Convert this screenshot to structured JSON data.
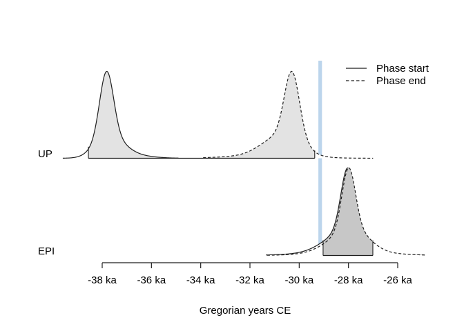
{
  "chart_data": {
    "type": "area",
    "title": "",
    "xlabel": "Gregorian years CE",
    "x_axis": {
      "unit": "ka",
      "range_ka": [
        -38,
        -26
      ],
      "ticks": [
        {
          "value": -38,
          "label": "-38 ka"
        },
        {
          "value": -36,
          "label": "-36 ka"
        },
        {
          "value": -34,
          "label": "-34 ka"
        },
        {
          "value": -32,
          "label": "-32 ka"
        },
        {
          "value": -30,
          "label": "-30 ka"
        },
        {
          "value": -28,
          "label": "-28 ka"
        },
        {
          "value": -26,
          "label": "-26 ka"
        }
      ]
    },
    "legend": {
      "position": "top-right",
      "items": [
        {
          "label": "Phase start",
          "style": "solid"
        },
        {
          "label": "Phase end",
          "style": "dashed"
        }
      ]
    },
    "event_marker": {
      "value_ka": -29.15,
      "color": "#bcd5ec"
    },
    "colors": {
      "line": "#1e1e1e",
      "fill_single": "#e3e3e3",
      "fill_overlap": "#c7c7c7",
      "background": "#ffffff"
    },
    "rows": [
      {
        "label": "UP",
        "hpd_ka": [
          -38.56,
          -29.37
        ],
        "curves": [
          {
            "name": "phase-start",
            "style": "solid",
            "fill": "#e3e3e3",
            "peak_ka": -37.8,
            "support_ka": [
              -39.6,
              -34.9
            ],
            "mix": [
              [
                -37.82,
                0.28,
                1.0
              ],
              [
                -37.5,
                0.5,
                0.2
              ],
              [
                -37.1,
                0.85,
                0.06
              ],
              [
                -38.15,
                0.42,
                0.12
              ]
            ]
          },
          {
            "name": "phase-end",
            "style": "dashed",
            "fill": "#e3e3e3",
            "peak_ka": -30.3,
            "support_ka": [
              -33.9,
              -27.0
            ],
            "mix": [
              [
                -30.3,
                0.3,
                1.0
              ],
              [
                -30.75,
                0.75,
                0.32
              ],
              [
                -31.4,
                1.5,
                0.04
              ],
              [
                -30.05,
                0.4,
                0.1
              ]
            ]
          }
        ]
      },
      {
        "label": "EPI",
        "hpd_ka": [
          -29.03,
          -27.01
        ],
        "curves": [
          {
            "name": "phase-start",
            "style": "solid",
            "fill": "#c7c7c7",
            "peak_ka": -28.0,
            "support_ka": [
              -31.35,
              -24.9
            ],
            "mix": [
              [
                -28.03,
                0.27,
                1.0
              ],
              [
                -28.17,
                0.8,
                0.33
              ],
              [
                -28.3,
                1.6,
                0.05
              ],
              [
                -27.8,
                0.5,
                0.1
              ]
            ]
          },
          {
            "name": "phase-end",
            "style": "dashed",
            "fill": "#c7c7c7",
            "peak_ka": -27.98,
            "support_ka": [
              -31.3,
              -24.88
            ],
            "mix": [
              [
                -27.99,
                0.27,
                1.0
              ],
              [
                -28.1,
                0.78,
                0.3
              ],
              [
                -27.6,
                0.55,
                0.12
              ],
              [
                -27.8,
                1.55,
                0.05
              ]
            ]
          }
        ]
      }
    ]
  }
}
